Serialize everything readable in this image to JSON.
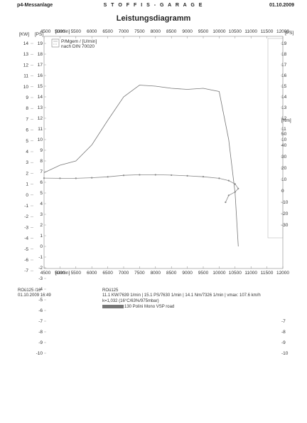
{
  "header": {
    "left": "p4-Messanlage",
    "center": "S T O F F I S - G A R A G E",
    "right": "01.10.2009"
  },
  "chart_data": {
    "type": "line",
    "title": "Leistungsdiagramm",
    "x_top_label": "[U/min]",
    "x_bottom_label": "[U/min]",
    "xlim": [
      4500,
      12000
    ],
    "x_ticks": [
      "4500",
      "5000",
      "5500",
      "6000",
      "6500",
      "7000",
      "7500",
      "8000",
      "8500",
      "9000",
      "9500",
      "10000",
      "10500",
      "11000",
      "11500",
      "12000"
    ],
    "kw_axis": {
      "label": "[KW]",
      "ylim": [
        -7,
        14
      ],
      "ticks": [
        "14",
        "13",
        "12",
        "11",
        "10",
        "9",
        "8",
        "7",
        "6",
        "5",
        "4",
        "3",
        "2",
        "1",
        "0",
        "-1",
        "-2",
        "-3",
        "-4",
        "-5",
        "-6",
        "-7"
      ]
    },
    "ps_axis": {
      "label": "[PS]",
      "ylim": [
        -10,
        19
      ],
      "ticks": [
        "19",
        "18",
        "17",
        "16",
        "15",
        "14",
        "13",
        "12",
        "11",
        "10",
        "9",
        "8",
        "7",
        "6",
        "5",
        "4",
        "3",
        "2",
        "1",
        "0",
        "-1",
        "-2",
        "-3",
        "-4",
        "-5",
        "-6",
        "-7",
        "-8",
        "-9",
        "-10"
      ]
    },
    "right_ps_axis": {
      "label": "[PS]",
      "ticks": [
        "19",
        "18",
        "17",
        "16",
        "15",
        "14",
        "13",
        "12",
        "11",
        "10"
      ]
    },
    "nm_axis": {
      "label": "[Nm]",
      "ticks": [
        "50",
        "40",
        "30",
        "20",
        "10",
        "0",
        "-10",
        "-20",
        "-30"
      ]
    },
    "right_lower_ticks": [
      "-7",
      "-8",
      "-9",
      "-10"
    ],
    "legend": [
      "P/Mgem / [U/min]",
      "nach DIN 70020"
    ],
    "series": [
      {
        "axis": "ps",
        "x": [
          4500,
          5000,
          5500,
          6000,
          6500,
          7000,
          7500,
          8000,
          8500,
          9000,
          9500,
          10000,
          10300,
          10500,
          10600
        ],
        "y": [
          6.9,
          7.6,
          8.0,
          9.5,
          11.8,
          14.0,
          15.1,
          15.0,
          14.8,
          14.7,
          14.8,
          14.5,
          10.0,
          5.0,
          0.0
        ]
      },
      {
        "axis": "nm",
        "x": [
          4500,
          5000,
          5500,
          6000,
          6500,
          7000,
          7500,
          8000,
          8500,
          9000,
          9500,
          10000,
          10300,
          10500,
          10600,
          10500,
          10300,
          10200
        ],
        "y": [
          11.2,
          11.0,
          11.0,
          11.5,
          12.3,
          13.6,
          14.1,
          14.1,
          13.8,
          13.2,
          12.4,
          11.0,
          9.0,
          6.0,
          2.0,
          -1.0,
          -4.0,
          -10.0
        ]
      }
    ]
  },
  "footer": {
    "left_line1": "ROü125 /16",
    "left_line2": "01.10.2009  16:49",
    "line1": "ROü125",
    "line2": "11.1 KW/7639 1/min  |  15.1 PS/7630 1/min  |  14.1 Nm/7326 1/min | vmax: 107.6 km/h",
    "line3": "k=1,032 (16°C/63%/975mbar)",
    "line4": "130 Polini Mono VSP road"
  }
}
